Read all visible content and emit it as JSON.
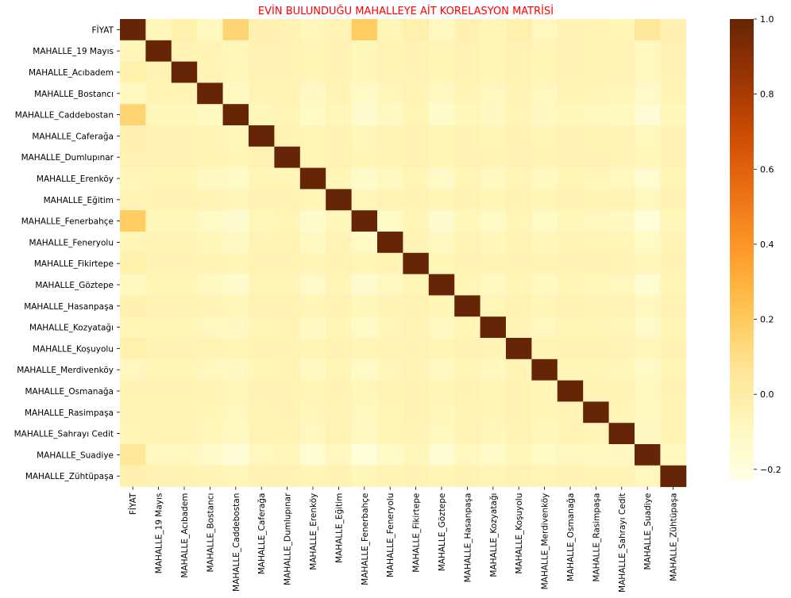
{
  "chart_data": {
    "type": "heatmap",
    "title": "EVİN BULUNDUĞU MAHALLEYE AİT KORELASYON MATRİSİ",
    "title_color": "#ff0000",
    "labels": [
      "FİYAT",
      "MAHALLE_19 Mayıs",
      "MAHALLE_Acıbadem",
      "MAHALLE_Bostancı",
      "MAHALLE_Caddebostan",
      "MAHALLE_Caferağa",
      "MAHALLE_Dumlupınar",
      "MAHALLE_Erenköy",
      "MAHALLE_Eğitim",
      "MAHALLE_Fenerbahçe",
      "MAHALLE_Feneryolu",
      "MAHALLE_Fikirtepe",
      "MAHALLE_Göztepe",
      "MAHALLE_Hasanpaşa",
      "MAHALLE_Kozyatağı",
      "MAHALLE_Koşuyolu",
      "MAHALLE_Merdivenköy",
      "MAHALLE_Osmanağa",
      "MAHALLE_Rasimpaşa",
      "MAHALLE_Sahrayı Cedit",
      "MAHALLE_Suadiye",
      "MAHALLE_Zühtüpaşa"
    ],
    "matrix": [
      [
        1.0,
        -0.07,
        -0.02,
        -0.09,
        0.15,
        -0.03,
        -0.04,
        -0.07,
        -0.05,
        0.19,
        -0.06,
        -0.02,
        -0.09,
        -0.03,
        -0.06,
        -0.02,
        -0.08,
        -0.04,
        -0.05,
        -0.06,
        0.05,
        -0.03
      ],
      [
        -0.07,
        1.0,
        -0.04,
        -0.05,
        -0.07,
        -0.04,
        -0.04,
        -0.06,
        -0.04,
        -0.07,
        -0.05,
        -0.04,
        -0.06,
        -0.04,
        -0.06,
        -0.04,
        -0.06,
        -0.04,
        -0.05,
        -0.05,
        -0.08,
        -0.04
      ],
      [
        -0.02,
        -0.04,
        1.0,
        -0.05,
        -0.07,
        -0.04,
        -0.04,
        -0.06,
        -0.04,
        -0.07,
        -0.05,
        -0.04,
        -0.06,
        -0.04,
        -0.06,
        -0.04,
        -0.06,
        -0.04,
        -0.05,
        -0.05,
        -0.08,
        -0.04
      ],
      [
        -0.09,
        -0.05,
        -0.05,
        1.0,
        -0.09,
        -0.05,
        -0.05,
        -0.1,
        -0.05,
        -0.11,
        -0.07,
        -0.05,
        -0.09,
        -0.05,
        -0.08,
        -0.05,
        -0.08,
        -0.05,
        -0.06,
        -0.07,
        -0.12,
        -0.05
      ],
      [
        0.15,
        -0.07,
        -0.07,
        -0.09,
        1.0,
        -0.07,
        -0.06,
        -0.11,
        -0.07,
        -0.14,
        -0.1,
        -0.06,
        -0.13,
        -0.07,
        -0.1,
        -0.06,
        -0.1,
        -0.07,
        -0.08,
        -0.09,
        -0.17,
        -0.07
      ],
      [
        -0.03,
        -0.04,
        -0.04,
        -0.05,
        -0.07,
        1.0,
        -0.04,
        -0.06,
        -0.04,
        -0.07,
        -0.05,
        -0.04,
        -0.06,
        -0.04,
        -0.06,
        -0.04,
        -0.06,
        -0.04,
        -0.05,
        -0.05,
        -0.08,
        -0.04
      ],
      [
        -0.04,
        -0.04,
        -0.04,
        -0.05,
        -0.06,
        -0.04,
        1.0,
        -0.06,
        -0.04,
        -0.06,
        -0.05,
        -0.04,
        -0.06,
        -0.04,
        -0.05,
        -0.04,
        -0.05,
        -0.04,
        -0.04,
        -0.05,
        -0.07,
        -0.04
      ],
      [
        -0.07,
        -0.06,
        -0.06,
        -0.1,
        -0.11,
        -0.06,
        -0.06,
        1.0,
        -0.06,
        -0.13,
        -0.09,
        -0.06,
        -0.12,
        -0.06,
        -0.09,
        -0.06,
        -0.09,
        -0.06,
        -0.07,
        -0.08,
        -0.15,
        -0.06
      ],
      [
        -0.05,
        -0.04,
        -0.04,
        -0.05,
        -0.07,
        -0.04,
        -0.04,
        -0.06,
        1.0,
        -0.07,
        -0.05,
        -0.04,
        -0.06,
        -0.04,
        -0.06,
        -0.04,
        -0.06,
        -0.04,
        -0.05,
        -0.05,
        -0.08,
        -0.04
      ],
      [
        0.19,
        -0.07,
        -0.07,
        -0.11,
        -0.14,
        -0.07,
        -0.06,
        -0.13,
        -0.07,
        1.0,
        -0.11,
        -0.06,
        -0.14,
        -0.07,
        -0.11,
        -0.06,
        -0.11,
        -0.07,
        -0.08,
        -0.09,
        -0.18,
        -0.07
      ],
      [
        -0.06,
        -0.05,
        -0.05,
        -0.07,
        -0.1,
        -0.05,
        -0.05,
        -0.09,
        -0.05,
        -0.11,
        1.0,
        -0.05,
        -0.09,
        -0.05,
        -0.07,
        -0.05,
        -0.07,
        -0.05,
        -0.06,
        -0.06,
        -0.11,
        -0.05
      ],
      [
        -0.02,
        -0.04,
        -0.04,
        -0.05,
        -0.06,
        -0.04,
        -0.04,
        -0.06,
        -0.04,
        -0.06,
        -0.05,
        1.0,
        -0.06,
        -0.04,
        -0.05,
        -0.04,
        -0.05,
        -0.04,
        -0.04,
        -0.05,
        -0.07,
        -0.04
      ],
      [
        -0.09,
        -0.06,
        -0.06,
        -0.09,
        -0.13,
        -0.06,
        -0.06,
        -0.12,
        -0.06,
        -0.14,
        -0.09,
        -0.06,
        1.0,
        -0.06,
        -0.09,
        -0.06,
        -0.09,
        -0.06,
        -0.07,
        -0.08,
        -0.15,
        -0.06
      ],
      [
        -0.03,
        -0.04,
        -0.04,
        -0.05,
        -0.07,
        -0.04,
        -0.04,
        -0.06,
        -0.04,
        -0.07,
        -0.05,
        -0.04,
        -0.06,
        1.0,
        -0.06,
        -0.04,
        -0.06,
        -0.04,
        -0.05,
        -0.05,
        -0.08,
        -0.04
      ],
      [
        -0.06,
        -0.06,
        -0.06,
        -0.08,
        -0.1,
        -0.06,
        -0.05,
        -0.09,
        -0.06,
        -0.11,
        -0.07,
        -0.05,
        -0.09,
        -0.06,
        1.0,
        -0.05,
        -0.08,
        -0.06,
        -0.06,
        -0.07,
        -0.12,
        -0.06
      ],
      [
        -0.02,
        -0.04,
        -0.04,
        -0.05,
        -0.06,
        -0.04,
        -0.04,
        -0.06,
        -0.04,
        -0.06,
        -0.05,
        -0.04,
        -0.06,
        -0.04,
        -0.05,
        1.0,
        -0.05,
        -0.04,
        -0.04,
        -0.05,
        -0.07,
        -0.04
      ],
      [
        -0.08,
        -0.06,
        -0.06,
        -0.08,
        -0.1,
        -0.06,
        -0.05,
        -0.09,
        -0.06,
        -0.11,
        -0.07,
        -0.05,
        -0.09,
        -0.06,
        -0.08,
        -0.05,
        1.0,
        -0.06,
        -0.06,
        -0.07,
        -0.11,
        -0.06
      ],
      [
        -0.04,
        -0.04,
        -0.04,
        -0.05,
        -0.07,
        -0.04,
        -0.04,
        -0.06,
        -0.04,
        -0.07,
        -0.05,
        -0.04,
        -0.06,
        -0.04,
        -0.06,
        -0.04,
        -0.06,
        1.0,
        -0.05,
        -0.05,
        -0.08,
        -0.04
      ],
      [
        -0.05,
        -0.05,
        -0.05,
        -0.06,
        -0.08,
        -0.05,
        -0.04,
        -0.07,
        -0.05,
        -0.08,
        -0.06,
        -0.04,
        -0.07,
        -0.05,
        -0.06,
        -0.04,
        -0.06,
        -0.05,
        1.0,
        -0.06,
        -0.09,
        -0.05
      ],
      [
        -0.06,
        -0.05,
        -0.05,
        -0.07,
        -0.09,
        -0.05,
        -0.05,
        -0.08,
        -0.05,
        -0.09,
        -0.06,
        -0.05,
        -0.08,
        -0.05,
        -0.07,
        -0.05,
        -0.07,
        -0.05,
        -0.06,
        1.0,
        -0.1,
        -0.05
      ],
      [
        0.05,
        -0.08,
        -0.08,
        -0.12,
        -0.17,
        -0.08,
        -0.07,
        -0.15,
        -0.08,
        -0.18,
        -0.11,
        -0.07,
        -0.15,
        -0.08,
        -0.12,
        -0.07,
        -0.11,
        -0.08,
        -0.09,
        -0.1,
        1.0,
        -0.08
      ],
      [
        -0.03,
        -0.04,
        -0.04,
        -0.05,
        -0.07,
        -0.04,
        -0.04,
        -0.06,
        -0.04,
        -0.07,
        -0.05,
        -0.04,
        -0.06,
        -0.04,
        -0.06,
        -0.04,
        -0.06,
        -0.04,
        -0.05,
        -0.05,
        -0.08,
        1.0
      ]
    ],
    "vmin": -0.23,
    "vmax": 1.0,
    "colormap": "YlOrBr",
    "colorbar_ticks": [
      1.0,
      0.8,
      0.6,
      0.4,
      0.2,
      0.0,
      -0.2
    ],
    "colorbar_tick_labels": [
      "1.0",
      "0.8",
      "0.6",
      "0.4",
      "0.2",
      "0.0",
      "−0.2"
    ]
  }
}
